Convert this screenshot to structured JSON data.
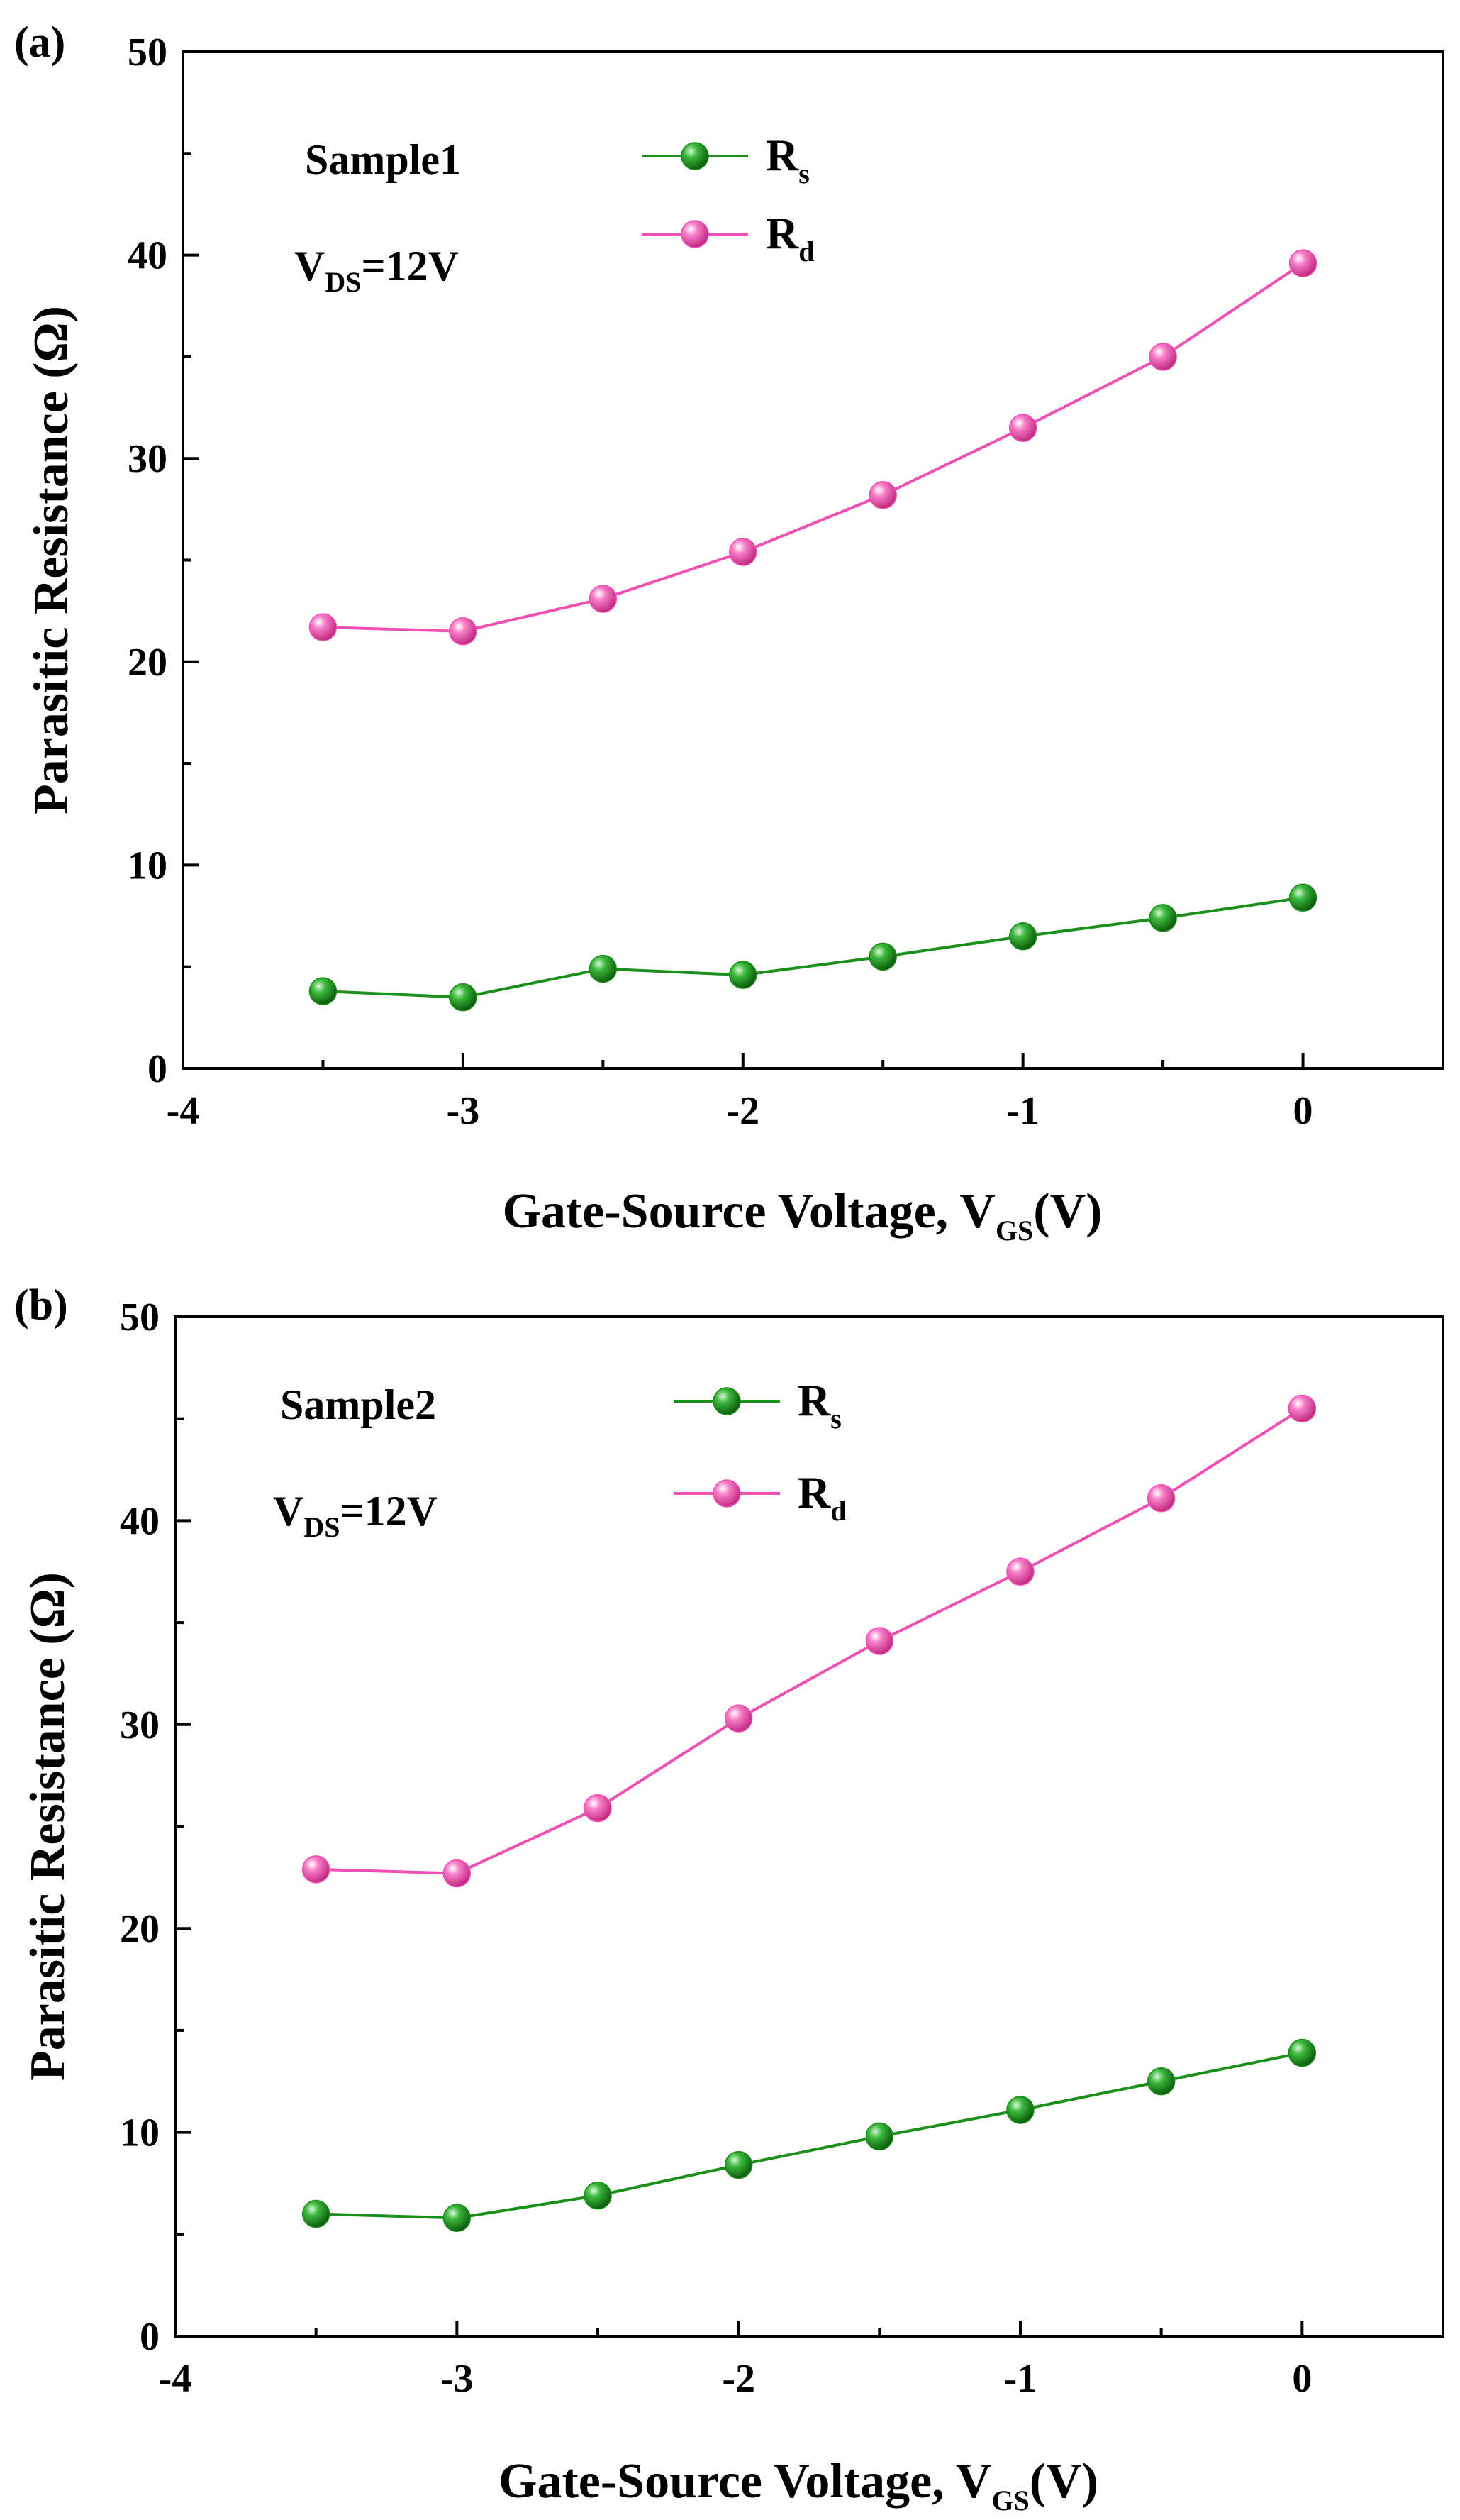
{
  "chart_data": [
    {
      "type": "line",
      "panel_label": "(a)",
      "annotation_sample": "Sample1",
      "annotation_vds": {
        "main": "V",
        "sub": "DS",
        "suffix": "=12V"
      },
      "xlabel": {
        "main": "Gate-Source Voltage, V",
        "sub": "GS",
        "suffix": "(V)"
      },
      "ylabel": "Parasitic Resistance (Ω)",
      "xlim": [
        -4,
        0.5
      ],
      "ylim": [
        0,
        50
      ],
      "xticks": [
        -4,
        -3,
        -2,
        -1,
        0
      ],
      "yticks": [
        0,
        10,
        20,
        30,
        40,
        50
      ],
      "xtick_labels": [
        "-4",
        "-3",
        "-2",
        "-1",
        "0"
      ],
      "ytick_labels": [
        "0",
        "10",
        "20",
        "30",
        "40",
        "50"
      ],
      "x": [
        -3.5,
        -3.0,
        -2.5,
        -2.0,
        -1.5,
        -1.0,
        -0.5,
        0.0
      ],
      "series": [
        {
          "name": "Rs",
          "legend_main": "R",
          "legend_sub": "s",
          "color": "#1a8f1a",
          "values": [
            3.8,
            3.5,
            4.9,
            4.6,
            5.5,
            6.5,
            7.4,
            8.4
          ]
        },
        {
          "name": "Rd",
          "legend_main": "R",
          "legend_sub": "d",
          "color": "#f050b4",
          "values": [
            21.7,
            21.5,
            23.1,
            25.4,
            28.2,
            31.5,
            35.0,
            39.6
          ]
        }
      ],
      "legend_position": "top-center"
    },
    {
      "type": "line",
      "panel_label": "(b)",
      "annotation_sample": "Sample2",
      "annotation_vds": {
        "main": "V",
        "sub": "DS",
        "suffix": "=12V"
      },
      "xlabel": {
        "main": "Gate-Source Voltage, V",
        "sub": "GS",
        "suffix": "(V)"
      },
      "ylabel": "Parasitic Resistance (Ω)",
      "xlim": [
        -4,
        0.5
      ],
      "ylim": [
        0,
        50
      ],
      "xticks": [
        -4,
        -3,
        -2,
        -1,
        0
      ],
      "yticks": [
        0,
        10,
        20,
        30,
        40,
        50
      ],
      "xtick_labels": [
        "-4",
        "-3",
        "-2",
        "-1",
        "0"
      ],
      "ytick_labels": [
        "0",
        "10",
        "20",
        "30",
        "40",
        "50"
      ],
      "x": [
        -3.5,
        -3.0,
        -2.5,
        -2.0,
        -1.5,
        -1.0,
        -0.5,
        0.0
      ],
      "series": [
        {
          "name": "Rs",
          "legend_main": "R",
          "legend_sub": "s",
          "color": "#1a8f1a",
          "values": [
            6.0,
            5.8,
            6.9,
            8.4,
            9.8,
            11.1,
            12.5,
            13.9
          ]
        },
        {
          "name": "Rd",
          "legend_main": "R",
          "legend_sub": "d",
          "color": "#f050b4",
          "values": [
            22.9,
            22.7,
            25.9,
            30.3,
            34.1,
            37.5,
            41.1,
            45.5
          ]
        }
      ],
      "legend_position": "top-center"
    }
  ]
}
